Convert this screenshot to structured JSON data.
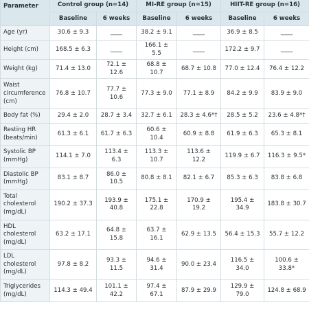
{
  "header": {
    "parameter": "Parameter",
    "groups": [
      "Control group (n=14)",
      "MI-RE group (n=15)",
      "HIIT-RE group (n=16)"
    ],
    "subcolumns": [
      "Baseline",
      "6 weeks",
      "Baseline",
      "6 weeks",
      "Baseline",
      "6 weeks"
    ]
  },
  "table": {
    "rows": [
      {
        "label": "Age (yr)",
        "cells": [
          "30.6 ± 9.3",
          "____",
          "38.2 ± 9.1",
          "____",
          "36.9 ± 8.5",
          "____"
        ]
      },
      {
        "label": "Height (cm)",
        "cells": [
          "168.5 ± 6.3",
          "____",
          "166.1 ± 5.5",
          "____",
          "172.2 ± 9.7",
          "____"
        ]
      },
      {
        "label": "Weight (kg)",
        "cells": [
          "71.4 ± 13.0",
          "72.1 ± 12.6",
          "68.8 ± 10.7",
          "68.7 ± 10.8",
          "77.0 ± 12.4",
          "76.4 ± 12.2"
        ]
      },
      {
        "label": "Waist circumference (cm)",
        "cells": [
          "76.8 ± 10.7",
          "77.7 ± 10.6",
          "77.3 ± 9.0",
          "77.1 ± 8.9",
          "84.2 ± 9.9",
          "83.9 ± 9.0"
        ]
      },
      {
        "label": "Body fat (%)",
        "cells": [
          "29.4 ± 2.0",
          "28.7 ± 3.4",
          "32.7 ± 6.1",
          "28.3 ± 4.6*†",
          "28.5 ± 5.2",
          "23.6 ± 4.8*†"
        ]
      },
      {
        "label": "Resting HR (beats/min)",
        "cells": [
          "61.3 ± 6.1",
          "61.7 ± 6.3",
          "60.6 ± 10.4",
          "60.9 ± 8.8",
          "61.9 ± 6.3",
          "65.3 ± 8.1"
        ]
      },
      {
        "label": "Systolic BP (mmHg)",
        "cells": [
          "114.1 ± 7.0",
          "113.4 ± 6.3",
          "113.3 ± 10.7",
          "113.6 ± 12.2",
          "119.9 ± 6.7",
          "116.3 ± 9.5*"
        ]
      },
      {
        "label": "Diastolic BP (mmHg)",
        "cells": [
          "83.1 ± 8.7",
          "86.0 ± 10.5",
          "80.8 ± 8.1",
          "82.1 ± 6.7",
          "85.3 ± 6.3",
          "83.8 ± 6.8"
        ]
      },
      {
        "label": "Total cholesterol (mg/dL)",
        "cells": [
          "190.2 ± 37.3",
          "193.9 ± 40.8",
          "175.1 ± 22.8",
          "170.9 ± 19.2",
          "195.4 ± 34.9",
          "183.8 ± 30.7"
        ]
      },
      {
        "label": "HDL cholesterol (mg/dL)",
        "cells": [
          "63.2 ± 17.1",
          "64.8 ± 15.8",
          "63.7 ± 16.1",
          "62.9 ± 13.5",
          "56.4 ± 15.3",
          "55.7 ± 12.2"
        ]
      },
      {
        "label": "LDL cholesterol (mg/dL)",
        "cells": [
          "97.8 ± 8.2",
          "93.3 ± 11.5",
          "94.6 ± 31.4",
          "90.0 ± 23.4",
          "116.5 ± 34.0",
          "100.6 ± 33.8*"
        ]
      },
      {
        "label": "Triglycerides (mg/dL)",
        "cells": [
          "114.3 ± 49.4",
          "101.1 ± 42.2",
          "97.4 ± 67.1",
          "87.9 ± 29.9",
          "129.9 ± 79.0",
          "124.8 ± 68.9"
        ]
      }
    ]
  }
}
